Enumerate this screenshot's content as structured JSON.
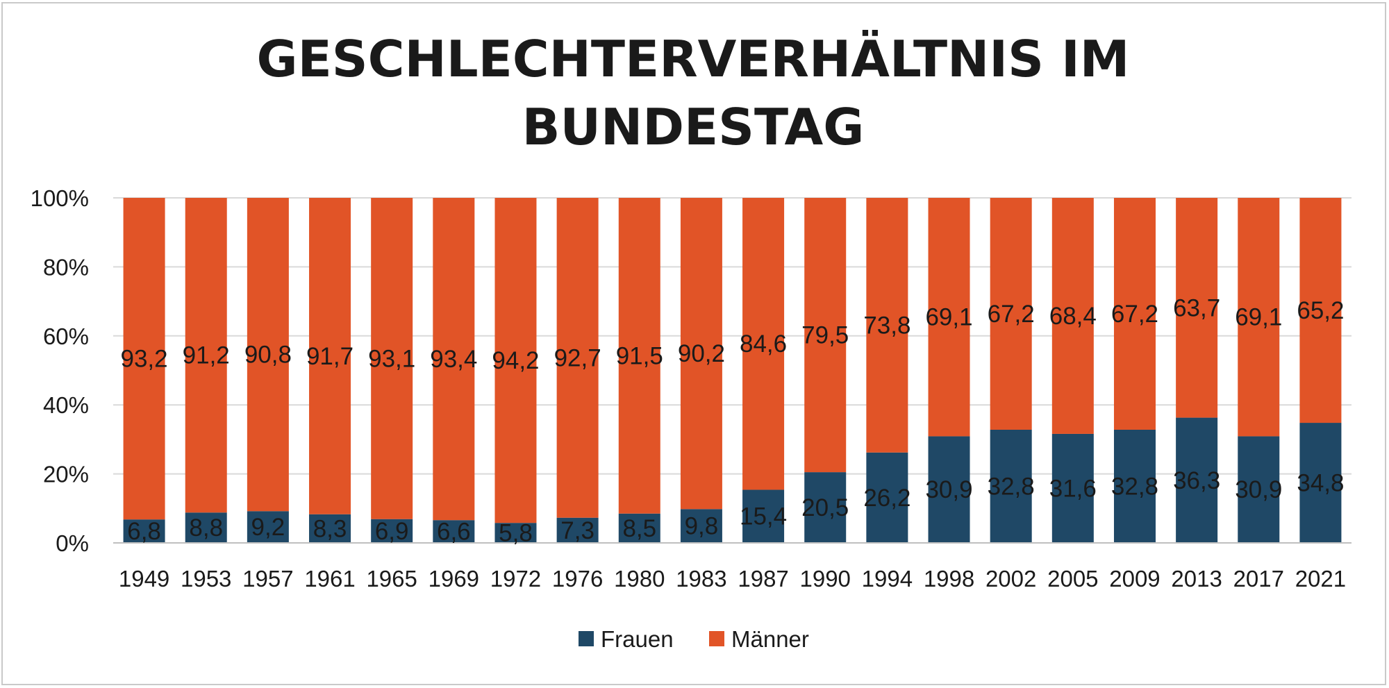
{
  "chart_data": {
    "type": "bar",
    "stacked": "percent",
    "title": "GESCHLECHTERVERHÄLTNIS IM BUNDESTAG",
    "title_lines": [
      "GESCHLECHTERVERHÄLTNIS IM",
      "BUNDESTAG"
    ],
    "categories": [
      "1949",
      "1953",
      "1957",
      "1961",
      "1965",
      "1969",
      "1972",
      "1976",
      "1980",
      "1983",
      "1987",
      "1990",
      "1994",
      "1998",
      "2002",
      "2005",
      "2009",
      "2013",
      "2017",
      "2021"
    ],
    "series": [
      {
        "name": "Frauen",
        "color": "#1f4866",
        "values": [
          6.8,
          8.8,
          9.2,
          8.3,
          6.9,
          6.6,
          5.8,
          7.3,
          8.5,
          9.8,
          15.4,
          20.5,
          26.2,
          30.9,
          32.8,
          31.6,
          32.8,
          36.3,
          30.9,
          34.8
        ],
        "labels": [
          "6,8",
          "8,8",
          "9,2",
          "8,3",
          "6,9",
          "6,6",
          "5,8",
          "7,3",
          "8,5",
          "9,8",
          "15,4",
          "20,5",
          "26,2",
          "30,9",
          "32,8",
          "31,6",
          "32,8",
          "36,3",
          "30,9",
          "34,8"
        ]
      },
      {
        "name": "Männer",
        "color": "#e15427",
        "values": [
          93.2,
          91.2,
          90.8,
          91.7,
          93.1,
          93.4,
          94.2,
          92.7,
          91.5,
          90.2,
          84.6,
          79.5,
          73.8,
          69.1,
          67.2,
          68.4,
          67.2,
          63.7,
          69.1,
          65.2
        ],
        "labels": [
          "93,2",
          "91,2",
          "90,8",
          "91,7",
          "93,1",
          "93,4",
          "94,2",
          "92,7",
          "91,5",
          "90,2",
          "84,6",
          "79,5",
          "73,8",
          "69,1",
          "67,2",
          "68,4",
          "67,2",
          "63,7",
          "69,1",
          "65,2"
        ]
      }
    ],
    "y_ticks": [
      "0%",
      "20%",
      "40%",
      "60%",
      "80%",
      "100%"
    ],
    "y_tick_values": [
      0,
      20,
      40,
      60,
      80,
      100
    ],
    "ylim": [
      0,
      100
    ],
    "xlabel": "",
    "ylabel": "",
    "grid": true,
    "legend_position": "bottom"
  }
}
